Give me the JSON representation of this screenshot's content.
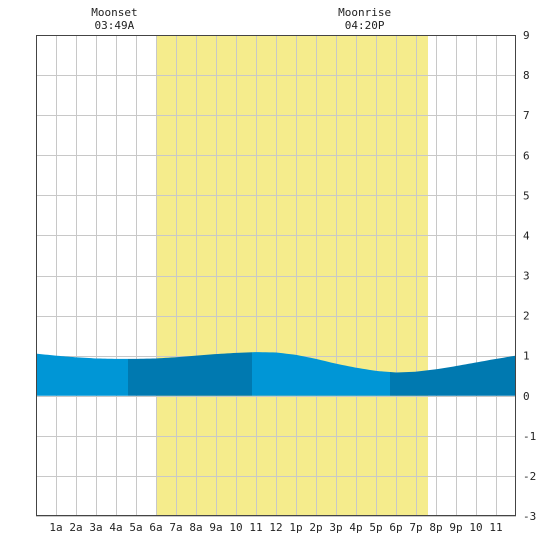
{
  "chart_data": {
    "type": "area",
    "title": "",
    "xlabel": "",
    "ylabel": "",
    "x_tick_labels": [
      "1a",
      "2a",
      "3a",
      "4a",
      "5a",
      "6a",
      "7a",
      "8a",
      "9a",
      "10",
      "11",
      "12",
      "1p",
      "2p",
      "3p",
      "4p",
      "5p",
      "6p",
      "7p",
      "8p",
      "9p",
      "10",
      "11"
    ],
    "y_ticks": [
      -3,
      -2,
      -1,
      0,
      1,
      2,
      3,
      4,
      5,
      6,
      7,
      8,
      9
    ],
    "ylim": [
      -3,
      9
    ],
    "xlim_hours": [
      0,
      24
    ],
    "grid": true,
    "daylight": {
      "start_hour": 6.0,
      "end_hour": 19.6
    },
    "annotations": [
      {
        "title": "Moonset",
        "time": "03:49A",
        "hour": 3.82
      },
      {
        "title": "Moonrise",
        "time": "04:20P",
        "hour": 16.33
      }
    ],
    "tide_series": {
      "hours": [
        0,
        1,
        2,
        3,
        4,
        5,
        6,
        7,
        8,
        9,
        10,
        11,
        12,
        13,
        14,
        15,
        16,
        17,
        18,
        19,
        20,
        21,
        22,
        23,
        24
      ],
      "values": [
        1.05,
        1.0,
        0.96,
        0.93,
        0.92,
        0.92,
        0.93,
        0.96,
        1.0,
        1.04,
        1.07,
        1.09,
        1.08,
        1.02,
        0.92,
        0.8,
        0.7,
        0.62,
        0.58,
        0.6,
        0.66,
        0.74,
        0.83,
        0.92,
        1.0
      ]
    },
    "shade_bands": [
      {
        "start_hour": 0,
        "end_hour": 4.6,
        "shade": "light"
      },
      {
        "start_hour": 4.6,
        "end_hour": 10.8,
        "shade": "dark"
      },
      {
        "start_hour": 10.8,
        "end_hour": 17.7,
        "shade": "light"
      },
      {
        "start_hour": 17.7,
        "end_hour": 24,
        "shade": "dark"
      }
    ]
  },
  "colors": {
    "daylight": "#f5ec8c",
    "tide_light": "#0096d6",
    "tide_dark": "#0079b0",
    "grid": "#c8c8c8",
    "frame": "#444444",
    "text": "#222222"
  }
}
